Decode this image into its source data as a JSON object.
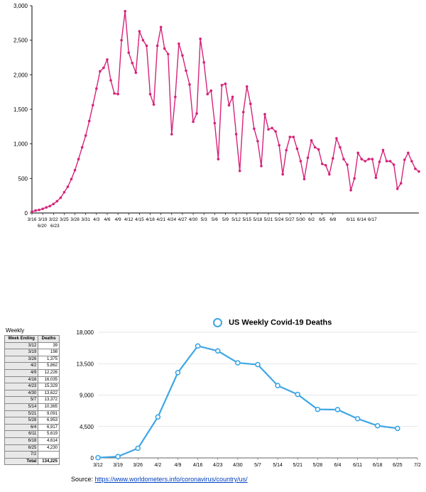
{
  "daily_chart": {
    "type": "line",
    "line_color": "#d6227a",
    "line_width": 1.4,
    "marker_radius": 1.8,
    "marker_fill": "#d6227a",
    "background_color": "#ffffff",
    "axis_color": "#000000",
    "ylim": [
      0,
      3000
    ],
    "ytick_step": 500,
    "yticks": [
      "0",
      "500",
      "1,000",
      "1,500",
      "2,000",
      "2,500",
      "3,000"
    ],
    "xtick_labels_line1": [
      "3/16",
      "3/19",
      "3/22",
      "3/25",
      "3/28",
      "3/31",
      "4/3",
      "4/6",
      "4/9",
      "4/12",
      "4/15",
      "4/18",
      "4/21",
      "4/24",
      "4/27",
      "4/30",
      "5/3",
      "5/6",
      "5/9",
      "5/12",
      "5/15",
      "5/18",
      "5/21",
      "5/24",
      "5/27",
      "5/30",
      "6/2",
      "6/5",
      "6/8"
    ],
    "xtick_labels_line2": [
      "6/20",
      "6/23"
    ],
    "xtick_labels_gap": [
      "6/11",
      "6/14",
      "6/17"
    ],
    "values": [
      20,
      35,
      45,
      60,
      80,
      100,
      130,
      170,
      220,
      300,
      380,
      490,
      620,
      780,
      950,
      1120,
      1330,
      1560,
      1800,
      2050,
      2100,
      2220,
      1920,
      1730,
      1720,
      2500,
      2920,
      2320,
      2170,
      2030,
      2630,
      2500,
      2420,
      1720,
      1570,
      2420,
      2690,
      2380,
      2300,
      1140,
      1680,
      2450,
      2280,
      2060,
      1860,
      1320,
      1440,
      2520,
      2180,
      1720,
      1770,
      1300,
      780,
      1850,
      1870,
      1560,
      1680,
      1140,
      610,
      1460,
      1830,
      1580,
      1220,
      1040,
      680,
      1430,
      1210,
      1230,
      1180,
      980,
      560,
      910,
      1100,
      1100,
      930,
      750,
      490,
      800,
      1050,
      950,
      920,
      710,
      690,
      560,
      790,
      1080,
      950,
      780,
      700,
      330,
      500,
      870,
      780,
      750,
      780,
      780,
      510,
      740,
      910,
      750,
      750,
      700,
      350,
      430,
      770,
      870,
      750,
      640,
      600
    ]
  },
  "weekly_table": {
    "title": "Weekly",
    "columns": [
      "Week Ending",
      "Deaths"
    ],
    "rows": [
      [
        "3/12",
        "39"
      ],
      [
        "3/19",
        "198"
      ],
      [
        "3/26",
        "1,375"
      ],
      [
        "4/2",
        "5,862"
      ],
      [
        "4/9",
        "12,226"
      ],
      [
        "4/16",
        "16,035"
      ],
      [
        "4/23",
        "15,329"
      ],
      [
        "4/30",
        "13,622"
      ],
      [
        "5/7",
        "13,372"
      ],
      [
        "5/14",
        "10,365"
      ],
      [
        "5/21",
        "9,091"
      ],
      [
        "5/28",
        "6,953"
      ],
      [
        "6/4",
        "6,917"
      ],
      [
        "6/11",
        "5,619"
      ],
      [
        "6/18",
        "4,614"
      ],
      [
        "6/25",
        "4,230"
      ],
      [
        "7/2",
        ""
      ]
    ],
    "total_label": "Total",
    "total_value": "134,225",
    "header_bg": "#e8e8e8",
    "border_color": "#888888"
  },
  "weekly_chart": {
    "type": "line",
    "legend_label": "US Weekly Covid-19 Deaths",
    "line_color": "#3ea6e6",
    "line_width": 2.2,
    "marker_radius": 3,
    "marker_stroke": "#3ea6e6",
    "marker_fill": "#ffffff",
    "background_color": "#ffffff",
    "axis_color": "#000000",
    "grid_color": "#dddddd",
    "ylim": [
      0,
      18000
    ],
    "yticks": [
      0,
      4500,
      9000,
      13500,
      18000
    ],
    "ytick_labels": [
      "0",
      "4,500",
      "9,000",
      "13,500",
      "18,000"
    ],
    "x_labels": [
      "3/12",
      "3/19",
      "3/26",
      "4/2",
      "4/9",
      "4/16",
      "4/23",
      "4/30",
      "5/7",
      "5/14",
      "5/21",
      "5/28",
      "6/4",
      "6/11",
      "6/18",
      "6/25",
      "7/2"
    ],
    "values": [
      39,
      198,
      1375,
      5862,
      12226,
      16035,
      15329,
      13622,
      13372,
      10365,
      9091,
      6953,
      6917,
      5619,
      4614,
      4230,
      null
    ]
  },
  "source": {
    "prefix": "Source: ",
    "url_text": "https://www.worldometers.info/coronavirus/country/us/"
  }
}
